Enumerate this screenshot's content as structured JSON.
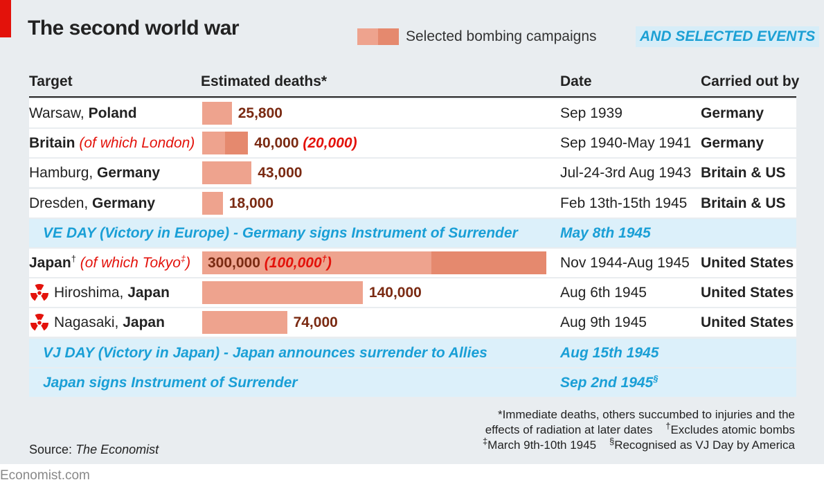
{
  "title": "The second world war",
  "legend": {
    "label": "Selected bombing campaigns"
  },
  "events_tag": "AND SELECTED EVENTS",
  "headers": {
    "target": "Target",
    "deaths": "Estimated deaths*",
    "date": "Date",
    "by": "Carried out by"
  },
  "colors": {
    "bar": "#eea38e",
    "bar_sub": "#e5896e",
    "value": "#7a2a12",
    "event": "#1a9fd6",
    "accent": "#e3120b"
  },
  "chart_data": {
    "type": "bar",
    "title": "The second world war",
    "series_label": "Selected bombing campaigns",
    "scale_max": 300000,
    "rows": [
      {
        "kind": "campaign",
        "place": "Warsaw,",
        "country": "Poland",
        "note": "",
        "deaths": 25800,
        "sub_deaths": null,
        "label": "25,800",
        "sub_label": "",
        "date": "Sep 1939",
        "by": "Germany",
        "atomic": false
      },
      {
        "kind": "campaign",
        "place": "",
        "country": "Britain",
        "note": "(of which London)",
        "deaths": 40000,
        "sub_deaths": 20000,
        "label": "40,000",
        "sub_label": "(20,000)",
        "date": "Sep 1940-May 1941",
        "by": "Germany",
        "atomic": false
      },
      {
        "kind": "campaign",
        "place": "Hamburg,",
        "country": "Germany",
        "note": "",
        "deaths": 43000,
        "sub_deaths": null,
        "label": "43,000",
        "sub_label": "",
        "date": "Jul-24-3rd Aug 1943",
        "by": "Britain & US",
        "atomic": false
      },
      {
        "kind": "campaign",
        "place": "Dresden,",
        "country": "Germany",
        "note": "",
        "deaths": 18000,
        "sub_deaths": null,
        "label": "18,000",
        "sub_label": "",
        "date": "Feb 13th-15th 1945",
        "by": "Britain & US",
        "atomic": false
      },
      {
        "kind": "event",
        "text": "VE DAY (Victory in Europe) - Germany signs Instrument of Surrender",
        "date": "May 8th 1945"
      },
      {
        "kind": "campaign",
        "place": "",
        "country": "Japan",
        "country_sup": "†",
        "note": "(of which Tokyo",
        "note_sup": "‡",
        "note_end": ")",
        "deaths": 300000,
        "sub_deaths": 100000,
        "label": "300,000",
        "sub_label": "(100,000",
        "sub_label_sup": "†",
        "sub_label_end": ")",
        "date": "Nov 1944-Aug 1945",
        "by": "United States",
        "atomic": false
      },
      {
        "kind": "campaign",
        "place": "Hiroshima,",
        "country": "Japan",
        "note": "",
        "deaths": 140000,
        "sub_deaths": null,
        "label": "140,000",
        "sub_label": "",
        "date": "Aug 6th 1945",
        "by": "United States",
        "atomic": true
      },
      {
        "kind": "campaign",
        "place": "Nagasaki,",
        "country": "Japan",
        "note": "",
        "deaths": 74000,
        "sub_deaths": null,
        "label": "74,000",
        "sub_label": "",
        "date": "Aug 9th 1945",
        "by": "United States",
        "atomic": true
      },
      {
        "kind": "event",
        "text": "VJ DAY (Victory in Japan) - Japan announces surrender to Allies",
        "date": "Aug 15th 1945"
      },
      {
        "kind": "event",
        "text": "Japan signs Instrument of Surrender",
        "date": "Sep 2nd 1945",
        "date_sup": "§"
      }
    ]
  },
  "footnotes": {
    "line1": "*Immediate deaths, others succumbed to injuries and the",
    "line2a": "effects of radiation at later dates",
    "line2b_sup": "†",
    "line2b": "Excludes atomic bombs",
    "line3a_sup": "‡",
    "line3a": "March 9th-10th 1945",
    "line3b_sup": "§",
    "line3b": "Recognised as VJ Day by America"
  },
  "source": {
    "prefix": "Source:",
    "name": "The Economist"
  },
  "brand": "Economist.com",
  "icons": {
    "atomic": "radiation-icon"
  }
}
